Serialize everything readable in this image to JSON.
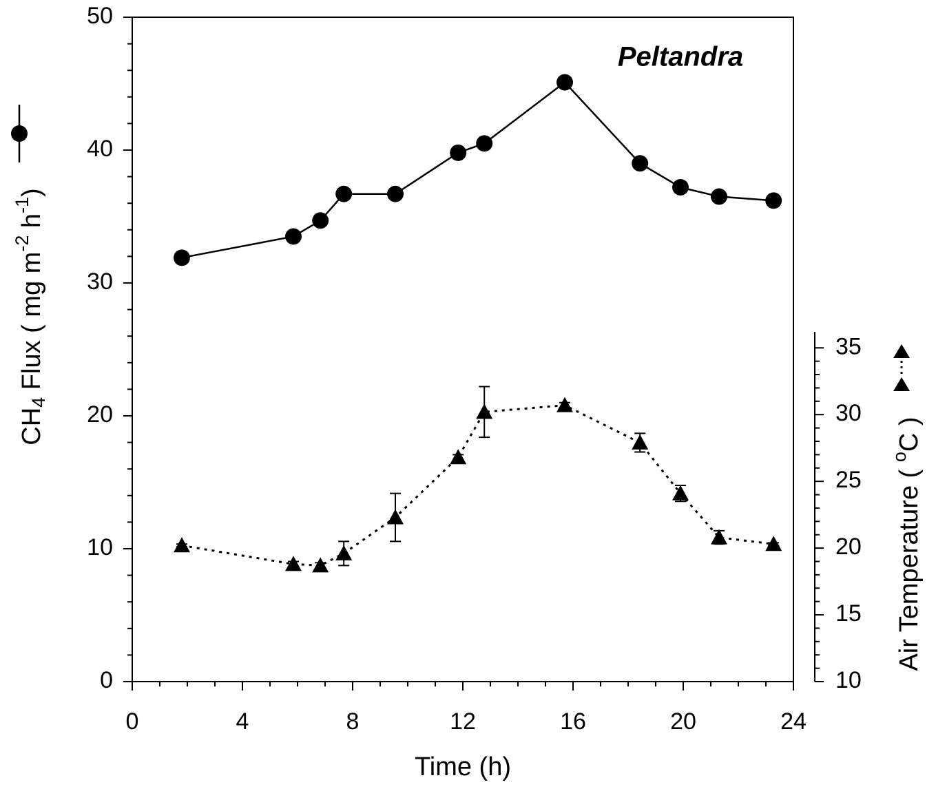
{
  "chart_data": {
    "type": "line",
    "title": "Peltandra",
    "xlabel": "Time (h)",
    "ylabel": [
      "CH",
      "4",
      " Flux ( mg m",
      "-2",
      " h",
      "-1",
      ")"
    ],
    "y2label": [
      "Air Temperature ( ",
      "o",
      "C )"
    ],
    "xlim": [
      0,
      24
    ],
    "xticks": [
      0,
      4,
      8,
      12,
      16,
      20,
      24
    ],
    "ylim": [
      0,
      50
    ],
    "yticks": [
      0,
      10,
      20,
      30,
      40,
      50
    ],
    "y2lim": [
      10,
      36.2
    ],
    "y2ticks": [
      10,
      15,
      20,
      25,
      30,
      35
    ],
    "series": [
      {
        "color": "#000000",
        "marker": "circle",
        "linestyle": "solid",
        "x": [
          1.8,
          5.85,
          6.83,
          7.68,
          9.55,
          11.83,
          12.78,
          15.7,
          18.43,
          19.9,
          21.3,
          23.28
        ],
        "values": [
          31.9,
          33.5,
          34.7,
          36.7,
          36.7,
          39.8,
          40.5,
          45.1,
          39.0,
          37.2,
          36.5,
          36.2
        ]
      },
      {
        "color": "#000000",
        "marker": "triangle",
        "linestyle": "dotted",
        "axis": "y2",
        "x": [
          1.8,
          5.85,
          6.83,
          7.68,
          9.55,
          11.83,
          12.78,
          15.7,
          18.43,
          19.9,
          21.3,
          23.28
        ],
        "values": [
          20.2,
          18.8,
          18.7,
          19.6,
          22.3,
          26.8,
          30.2,
          30.7,
          27.9,
          24.1,
          20.8,
          20.3
        ],
        "errors": [
          0.1,
          0.2,
          0.2,
          0.9,
          1.8,
          0.2,
          1.9,
          0.2,
          0.7,
          0.6,
          0.5,
          0.1
        ]
      }
    ]
  }
}
